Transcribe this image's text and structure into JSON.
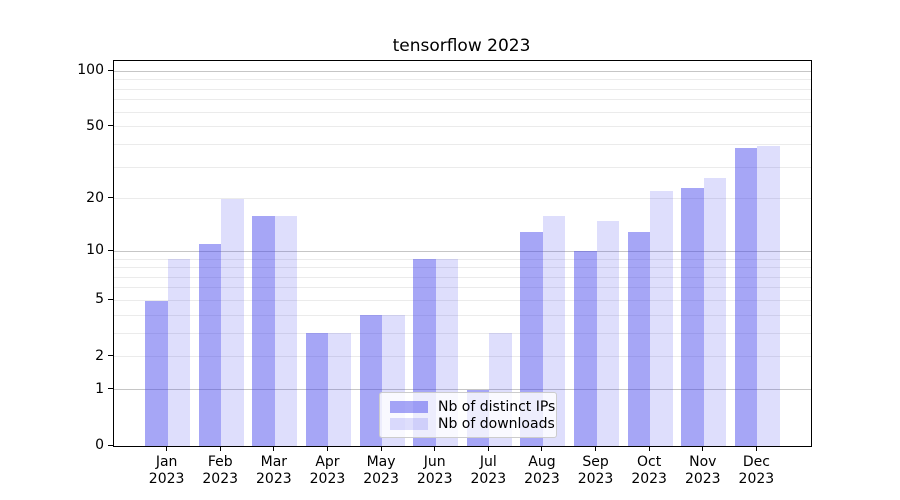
{
  "title": "tensorflow 2023",
  "chart_data": {
    "type": "bar",
    "title": "tensorflow 2023",
    "categories": [
      "Jan 2023",
      "Feb 2023",
      "Mar 2023",
      "Apr 2023",
      "May 2023",
      "Jun 2023",
      "Jul 2023",
      "Aug 2023",
      "Sep 2023",
      "Oct 2023",
      "Nov 2023",
      "Dec 2023"
    ],
    "category_line1": [
      "Jan",
      "Feb",
      "Mar",
      "Apr",
      "May",
      "Jun",
      "Jul",
      "Aug",
      "Sep",
      "Oct",
      "Nov",
      "Dec"
    ],
    "category_line2": "2023",
    "series": [
      {
        "name": "Nb of distinct IPs",
        "color": "#a8a8f5",
        "fill": "rgba(60,60,235,0.46)",
        "values": [
          5,
          11,
          16,
          3,
          4,
          9,
          1,
          13,
          10,
          13,
          23,
          38
        ]
      },
      {
        "name": "Nb of downloads",
        "color": "#dadaf8",
        "fill": "rgba(60,60,235,0.17)",
        "values": [
          9,
          20,
          16,
          3,
          4,
          9,
          3,
          16,
          15,
          22,
          26,
          39
        ]
      }
    ],
    "y_axis": {
      "scale": "log1p",
      "tick_labels": [
        100,
        50,
        20,
        10,
        5,
        2,
        1,
        0
      ],
      "major_gridlines": [
        1,
        10,
        100
      ],
      "minor_gridlines": [
        2,
        3,
        4,
        5,
        6,
        7,
        8,
        9,
        20,
        30,
        40,
        50,
        60,
        70,
        80,
        90
      ],
      "range": [
        0,
        113
      ]
    },
    "xlabel": "",
    "ylabel": "",
    "grid": true,
    "legend": {
      "position": "lower center",
      "entries": [
        "Nb of distinct IPs",
        "Nb of downloads"
      ]
    }
  },
  "colors": {
    "major_grid": "#c6c6c6",
    "minor_grid": "#ebebeb",
    "spine": "#000000",
    "text": "#000000",
    "legend_border": "#cccccc",
    "background": "#ffffff"
  }
}
